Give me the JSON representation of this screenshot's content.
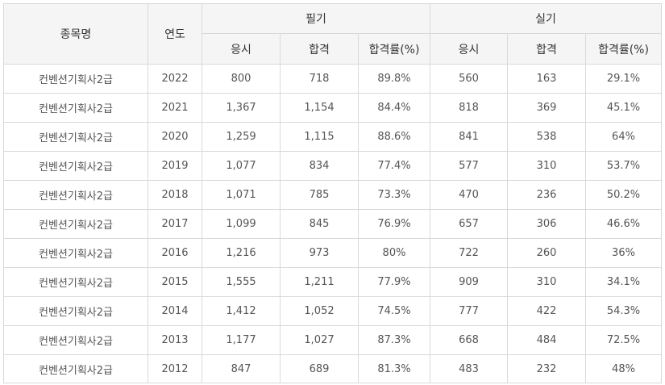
{
  "table": {
    "headers": {
      "item": "종목명",
      "year": "연도",
      "written": "필기",
      "practical": "실기",
      "applicants": "응시",
      "passed": "합격",
      "pass_rate": "합격률(%)"
    },
    "rows": [
      {
        "item": "컨벤션기획사2급",
        "year": "2022",
        "w_app": "800",
        "w_pass": "718",
        "w_rate": "89.8%",
        "p_app": "560",
        "p_pass": "163",
        "p_rate": "29.1%"
      },
      {
        "item": "컨벤션기획사2급",
        "year": "2021",
        "w_app": "1,367",
        "w_pass": "1,154",
        "w_rate": "84.4%",
        "p_app": "818",
        "p_pass": "369",
        "p_rate": "45.1%"
      },
      {
        "item": "컨벤션기획사2급",
        "year": "2020",
        "w_app": "1,259",
        "w_pass": "1,115",
        "w_rate": "88.6%",
        "p_app": "841",
        "p_pass": "538",
        "p_rate": "64%"
      },
      {
        "item": "컨벤션기획사2급",
        "year": "2019",
        "w_app": "1,077",
        "w_pass": "834",
        "w_rate": "77.4%",
        "p_app": "577",
        "p_pass": "310",
        "p_rate": "53.7%"
      },
      {
        "item": "컨벤션기획사2급",
        "year": "2018",
        "w_app": "1,071",
        "w_pass": "785",
        "w_rate": "73.3%",
        "p_app": "470",
        "p_pass": "236",
        "p_rate": "50.2%"
      },
      {
        "item": "컨벤션기획사2급",
        "year": "2017",
        "w_app": "1,099",
        "w_pass": "845",
        "w_rate": "76.9%",
        "p_app": "657",
        "p_pass": "306",
        "p_rate": "46.6%"
      },
      {
        "item": "컨벤션기획사2급",
        "year": "2016",
        "w_app": "1,216",
        "w_pass": "973",
        "w_rate": "80%",
        "p_app": "722",
        "p_pass": "260",
        "p_rate": "36%"
      },
      {
        "item": "컨벤션기획사2급",
        "year": "2015",
        "w_app": "1,555",
        "w_pass": "1,211",
        "w_rate": "77.9%",
        "p_app": "909",
        "p_pass": "310",
        "p_rate": "34.1%"
      },
      {
        "item": "컨벤션기획사2급",
        "year": "2014",
        "w_app": "1,412",
        "w_pass": "1,052",
        "w_rate": "74.5%",
        "p_app": "777",
        "p_pass": "422",
        "p_rate": "54.3%"
      },
      {
        "item": "컨벤션기획사2급",
        "year": "2013",
        "w_app": "1,177",
        "w_pass": "1,027",
        "w_rate": "87.3%",
        "p_app": "668",
        "p_pass": "484",
        "p_rate": "72.5%"
      },
      {
        "item": "컨벤션기획사2급",
        "year": "2012",
        "w_app": "847",
        "w_pass": "689",
        "w_rate": "81.3%",
        "p_app": "483",
        "p_pass": "232",
        "p_rate": "48%"
      }
    ]
  }
}
